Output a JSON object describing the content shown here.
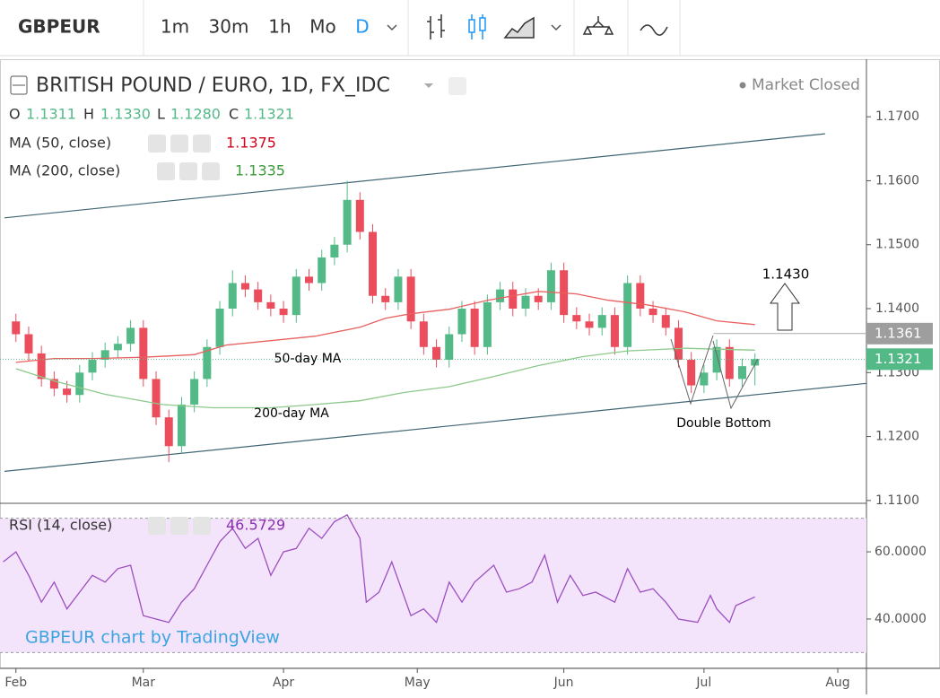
{
  "toolbar": {
    "symbol": "GBPEUR",
    "intervals": [
      "1m",
      "30m",
      "1h",
      "Mo",
      "D"
    ]
  },
  "watermark": "GBPEUR chart by TradingView",
  "status": "Market Closed",
  "ohlc_header": {
    "labels": [
      "O",
      "H",
      "L",
      "C"
    ],
    "values": [
      "1.1311",
      "1.1330",
      "1.1280",
      "1.1321"
    ]
  },
  "chart_data": [
    {
      "type": "candlestick",
      "title": "BRITISH POUND / EURO, 1D, FX_IDC",
      "xlim": [
        -2.5,
        133.5
      ],
      "ylim": [
        1.1097,
        1.179
      ],
      "yticks": [
        {
          "value": 1.11,
          "label": "1.1100"
        },
        {
          "value": 1.12,
          "label": "1.1200"
        },
        {
          "value": 1.13,
          "label": "1.1300"
        },
        {
          "value": 1.14,
          "label": "1.1400"
        },
        {
          "value": 1.15,
          "label": "1.1500"
        },
        {
          "value": 1.16,
          "label": "1.1600"
        },
        {
          "value": 1.17,
          "label": "1.1700"
        }
      ],
      "up_color": "#53b987",
      "down_color": "#eb4d5c",
      "x": [
        0,
        2,
        4,
        6,
        8,
        10,
        12,
        14,
        16,
        18,
        20,
        22,
        24,
        26,
        28,
        30,
        32,
        34,
        36,
        38,
        40,
        42,
        44,
        46,
        48,
        50,
        52,
        54,
        56,
        58,
        60,
        62,
        64,
        66,
        68,
        70,
        72,
        74,
        76,
        78,
        80,
        82,
        84,
        86,
        88,
        90,
        92,
        94,
        96,
        98,
        100,
        102,
        104,
        106,
        108,
        110,
        112,
        114,
        116
      ],
      "open": [
        1.138,
        1.136,
        1.133,
        1.129,
        1.1275,
        1.1265,
        1.13,
        1.132,
        1.1335,
        1.1345,
        1.137,
        1.129,
        1.123,
        1.1185,
        1.125,
        1.129,
        1.134,
        1.14,
        1.144,
        1.143,
        1.141,
        1.14,
        1.139,
        1.145,
        1.144,
        1.148,
        1.15,
        1.157,
        1.152,
        1.142,
        1.141,
        1.145,
        1.138,
        1.134,
        1.132,
        1.136,
        1.14,
        1.134,
        1.141,
        1.143,
        1.14,
        1.142,
        1.141,
        1.146,
        1.139,
        1.138,
        1.137,
        1.139,
        1.134,
        1.144,
        1.14,
        1.139,
        1.137,
        1.132,
        1.128,
        1.13,
        1.134,
        1.129,
        1.1311
      ],
      "high": [
        1.1392,
        1.1372,
        1.1342,
        1.1302,
        1.1287,
        1.1312,
        1.1332,
        1.1347,
        1.1357,
        1.1382,
        1.1382,
        1.1302,
        1.1242,
        1.1262,
        1.1302,
        1.1352,
        1.1412,
        1.146,
        1.1452,
        1.1442,
        1.1422,
        1.1412,
        1.1462,
        1.1462,
        1.1492,
        1.1512,
        1.16,
        1.1582,
        1.1532,
        1.1432,
        1.1462,
        1.1462,
        1.1392,
        1.1352,
        1.1372,
        1.1412,
        1.1412,
        1.1422,
        1.1442,
        1.1442,
        1.1432,
        1.1432,
        1.1472,
        1.1472,
        1.1402,
        1.1392,
        1.1402,
        1.1402,
        1.1452,
        1.1452,
        1.1412,
        1.1402,
        1.1382,
        1.1332,
        1.1312,
        1.1352,
        1.1352,
        1.1322,
        1.133
      ],
      "low": [
        1.1348,
        1.1318,
        1.1278,
        1.1263,
        1.1253,
        1.1253,
        1.1288,
        1.1308,
        1.1323,
        1.1333,
        1.1278,
        1.1218,
        1.116,
        1.1173,
        1.1238,
        1.1278,
        1.1328,
        1.1388,
        1.1418,
        1.1398,
        1.1388,
        1.1378,
        1.1378,
        1.1428,
        1.1428,
        1.1468,
        1.1488,
        1.1508,
        1.1408,
        1.1398,
        1.1398,
        1.1368,
        1.1328,
        1.1308,
        1.1308,
        1.1348,
        1.1328,
        1.1328,
        1.1398,
        1.1388,
        1.1388,
        1.1398,
        1.1398,
        1.1378,
        1.1368,
        1.1358,
        1.1358,
        1.1328,
        1.1328,
        1.1388,
        1.1378,
        1.1358,
        1.1308,
        1.1268,
        1.1268,
        1.1288,
        1.1278,
        1.1278,
        1.128
      ],
      "close": [
        1.136,
        1.133,
        1.129,
        1.1275,
        1.1265,
        1.13,
        1.132,
        1.1335,
        1.1345,
        1.137,
        1.129,
        1.123,
        1.1185,
        1.125,
        1.129,
        1.134,
        1.14,
        1.144,
        1.143,
        1.141,
        1.14,
        1.139,
        1.145,
        1.144,
        1.148,
        1.15,
        1.157,
        1.152,
        1.142,
        1.141,
        1.145,
        1.138,
        1.134,
        1.132,
        1.136,
        1.14,
        1.134,
        1.141,
        1.143,
        1.14,
        1.142,
        1.141,
        1.146,
        1.139,
        1.138,
        1.137,
        1.139,
        1.134,
        1.144,
        1.14,
        1.139,
        1.137,
        1.132,
        1.128,
        1.13,
        1.134,
        1.129,
        1.131,
        1.1321
      ],
      "series": [
        {
          "name": "MA (50, close)",
          "color": "#e8605f",
          "x": [
            0,
            6,
            12,
            20,
            28,
            33,
            40,
            47,
            54,
            58,
            62,
            68,
            74,
            82,
            88,
            93,
            99,
            105,
            110,
            116
          ],
          "values": [
            1.1316,
            1.1322,
            1.1322,
            1.1324,
            1.1328,
            1.1343,
            1.135,
            1.1357,
            1.1371,
            1.1385,
            1.1392,
            1.1399,
            1.1413,
            1.1427,
            1.1423,
            1.1413,
            1.1406,
            1.1395,
            1.1381,
            1.1375
          ]
        },
        {
          "name": "MA (200, close)",
          "color": "#8cc98a",
          "x": [
            0,
            6,
            14,
            23,
            31,
            40,
            47,
            54,
            61,
            68,
            75,
            82,
            89,
            96,
            105,
            116
          ],
          "values": [
            1.1306,
            1.1287,
            1.1266,
            1.125,
            1.1245,
            1.1245,
            1.125,
            1.1256,
            1.1269,
            1.1278,
            1.1294,
            1.1311,
            1.1325,
            1.1334,
            1.1338,
            1.1335
          ]
        }
      ],
      "trendlines": [
        {
          "x": [
            -1.8,
            127
          ],
          "values": [
            1.1542,
            1.16734
          ]
        },
        {
          "x": [
            -1.8,
            133.5
          ],
          "values": [
            1.11455,
            1.12832
          ]
        }
      ],
      "level": {
        "x": 109.5,
        "value": 1.1361
      },
      "target": "1.1430",
      "annotations": [
        "50-day MA",
        "200-day MA",
        "Double Bottom"
      ]
    },
    {
      "type": "line",
      "title": "RSI (14, close)",
      "color": "#9c4fc0",
      "xlim": [
        -2.5,
        133.5
      ],
      "ylim": [
        25.3,
        73.1
      ],
      "yticks": [
        {
          "value": 40,
          "label": "40.0000"
        },
        {
          "value": 60,
          "label": "60.0000"
        }
      ],
      "bands": [
        30,
        70
      ],
      "xticks": [
        {
          "value": 0,
          "label": "Feb"
        },
        {
          "value": 20,
          "label": "Mar"
        },
        {
          "value": 42,
          "label": "Apr"
        },
        {
          "value": 63,
          "label": "May"
        },
        {
          "value": 86,
          "label": "Jun"
        },
        {
          "value": 108,
          "label": "Jul"
        },
        {
          "value": 129,
          "label": "Aug"
        }
      ],
      "x": [
        -2,
        0,
        2,
        4,
        6,
        8,
        10,
        12,
        14,
        16,
        18,
        20,
        22,
        24,
        26,
        28,
        30,
        32,
        34,
        36,
        38,
        40,
        42,
        44,
        46,
        48,
        50,
        52,
        54,
        55,
        57,
        59,
        62,
        64,
        66,
        68,
        70,
        72,
        75,
        77,
        79,
        81,
        83,
        85,
        87,
        89,
        91,
        94,
        96,
        98,
        100,
        102,
        104,
        107,
        109,
        110,
        112,
        113,
        116
      ],
      "values": [
        57,
        60,
        53,
        45,
        51,
        43,
        48,
        53,
        51,
        55,
        56,
        41,
        40,
        39,
        45,
        49,
        56,
        63,
        67,
        61,
        64,
        53,
        60,
        61,
        67,
        64,
        69,
        71,
        64,
        45,
        48,
        57,
        41,
        43,
        39,
        51,
        45,
        51,
        56,
        48,
        49,
        51,
        59,
        45,
        53,
        47,
        48,
        45,
        55,
        48,
        49,
        45,
        40,
        39,
        47,
        43,
        39,
        44,
        46.5729
      ]
    }
  ]
}
